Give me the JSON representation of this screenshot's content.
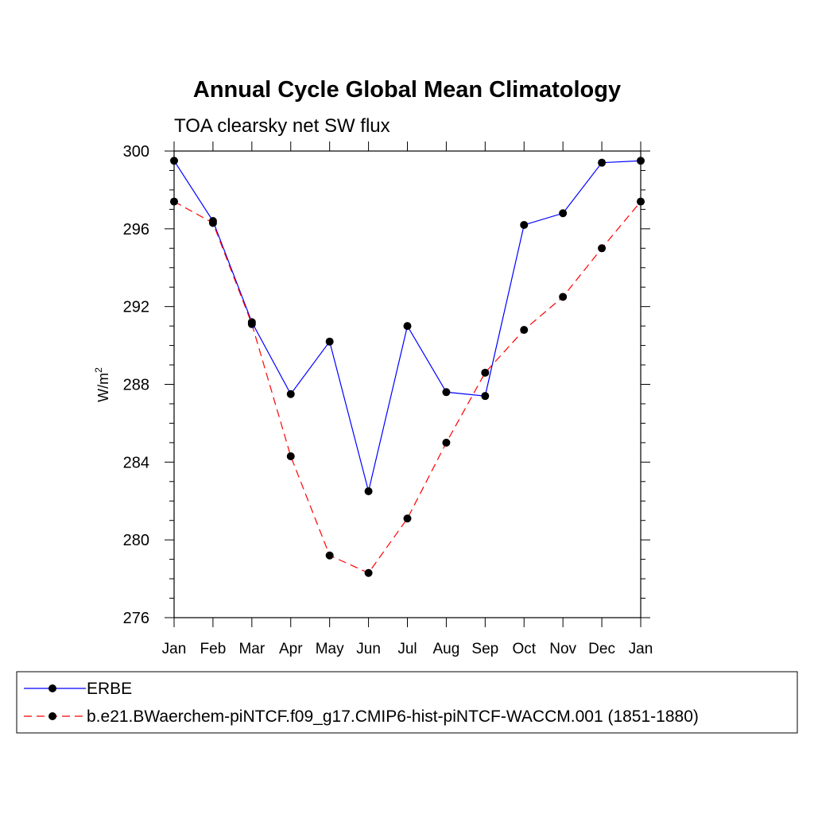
{
  "chart_data": {
    "type": "line",
    "title": "Annual Cycle Global Mean Climatology",
    "subtitle": "TOA clearsky net SW flux",
    "ylabel_base": "W/m",
    "ylabel_exp": "2",
    "xlabel": "",
    "categories": [
      "Jan",
      "Feb",
      "Mar",
      "Apr",
      "May",
      "Jun",
      "Jul",
      "Aug",
      "Sep",
      "Oct",
      "Nov",
      "Dec",
      "Jan"
    ],
    "ylim": [
      276,
      300
    ],
    "yticks": [
      276,
      280,
      284,
      288,
      292,
      296,
      300
    ],
    "ytick_labels": [
      "276",
      "280",
      "284",
      "288",
      "292",
      "296",
      "300"
    ],
    "series": [
      {
        "name": "ERBE",
        "color": "#0000ff",
        "dash": "solid",
        "marker": "circle",
        "values": [
          299.5,
          296.4,
          291.2,
          287.5,
          290.2,
          282.5,
          291.0,
          287.6,
          287.4,
          296.2,
          296.8,
          299.4,
          299.5
        ]
      },
      {
        "name": "b.e21.BWaerchem-piNTCF.f09_g17.CMIP6-hist-piNTCF-WACCM.001 (1851-1880)",
        "color": "#ff0000",
        "dash": "dashed",
        "marker": "circle",
        "values": [
          297.4,
          296.3,
          291.1,
          284.3,
          279.2,
          278.3,
          281.1,
          285.0,
          288.6,
          290.8,
          292.5,
          295.0,
          297.4
        ]
      }
    ],
    "grid": false,
    "legend_position": "bottom"
  }
}
